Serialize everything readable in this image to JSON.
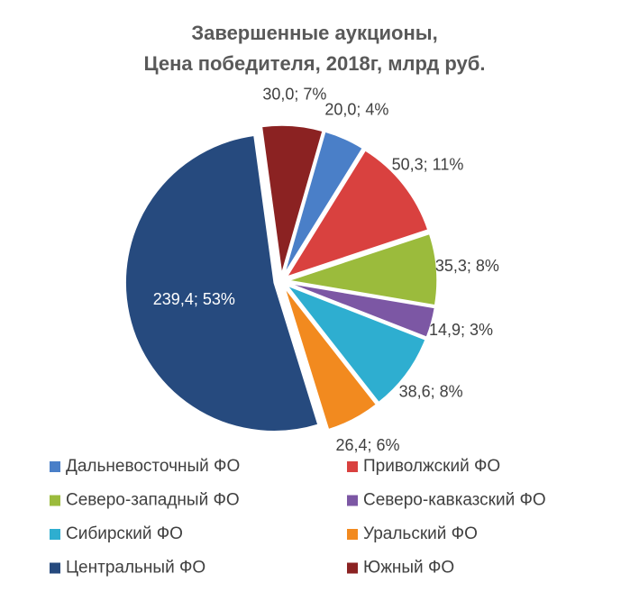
{
  "chart_data": {
    "type": "pie",
    "title": [
      "Завершенные аукционы,",
      "Цена победителя, 2018г, млрд руб."
    ],
    "categories": [
      "Дальневосточный ФО",
      "Приволжский ФО",
      "Северо-западный ФО",
      "Северо-кавказский ФО",
      "Сибирский ФО",
      "Уральский ФО",
      "Центральный ФО",
      "Южный ФО"
    ],
    "values": [
      20.0,
      50.3,
      35.3,
      14.9,
      38.6,
      26.4,
      239.4,
      30.0
    ],
    "value_labels": [
      "20,0; 4%",
      "50,3; 11%",
      "35,3; 8%",
      "14,9; 3%",
      "38,6; 8%",
      "26,4; 6%",
      "239,4; 53%",
      "30,0; 7%"
    ],
    "colors": [
      "#4a7fc8",
      "#d9413f",
      "#9bbb3c",
      "#7c57a4",
      "#2eaed0",
      "#f28a1f",
      "#264a7e",
      "#8b2222"
    ]
  }
}
